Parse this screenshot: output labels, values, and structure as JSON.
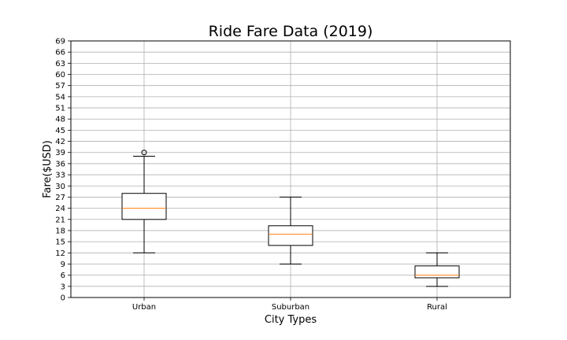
{
  "chart_data": {
    "type": "box",
    "title": "Ride Fare Data (2019)",
    "xlabel": "City Types",
    "ylabel": "Fare($USD)",
    "ylim": [
      0,
      69
    ],
    "yticks": [
      0,
      3,
      6,
      9,
      12,
      15,
      18,
      21,
      24,
      27,
      30,
      33,
      36,
      39,
      42,
      45,
      48,
      51,
      54,
      57,
      60,
      63,
      66,
      69
    ],
    "grid": true,
    "categories": [
      "Urban",
      "Suburban",
      "Rural"
    ],
    "boxes": [
      {
        "category": "Urban",
        "whisker_low": 12,
        "q1": 21,
        "median": 24,
        "q3": 28,
        "whisker_high": 38,
        "outliers": [
          39
        ]
      },
      {
        "category": "Suburban",
        "whisker_low": 9,
        "q1": 14,
        "median": 17,
        "q3": 19.3,
        "whisker_high": 27,
        "outliers": []
      },
      {
        "category": "Rural",
        "whisker_low": 3,
        "q1": 5.3,
        "median": 6,
        "q3": 8.5,
        "whisker_high": 12,
        "outliers": []
      }
    ],
    "colors": {
      "box": "#000000",
      "median": "#ff7f0e",
      "grid": "#b0b0b0"
    }
  }
}
